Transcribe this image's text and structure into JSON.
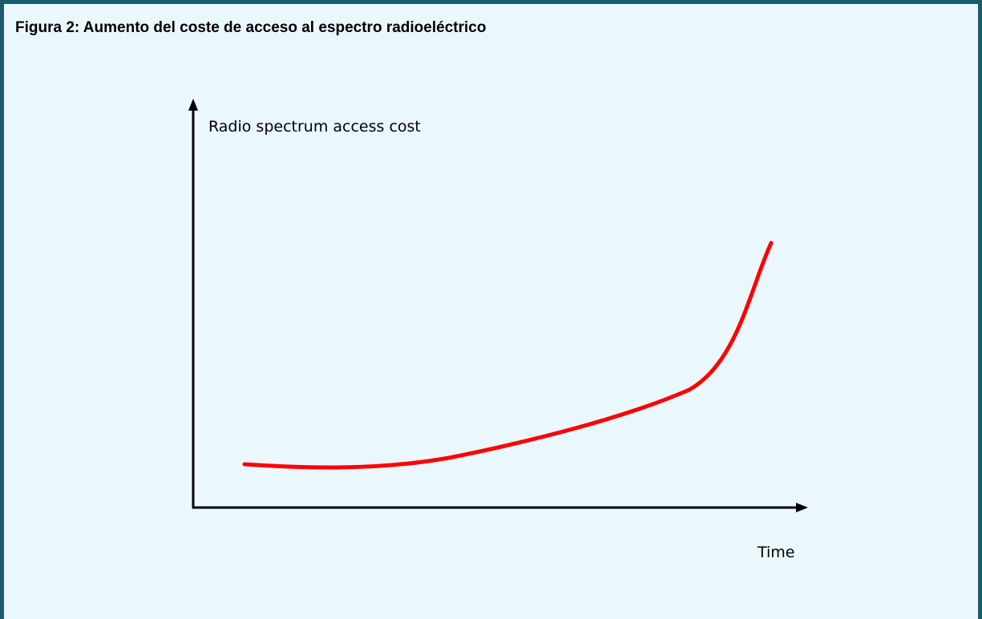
{
  "figure": {
    "title": "Figura 2: Aumento del coste de acceso al espectro radioeléctrico",
    "y_axis_label": "Radio spectrum access cost",
    "x_axis_label": "Time"
  }
}
